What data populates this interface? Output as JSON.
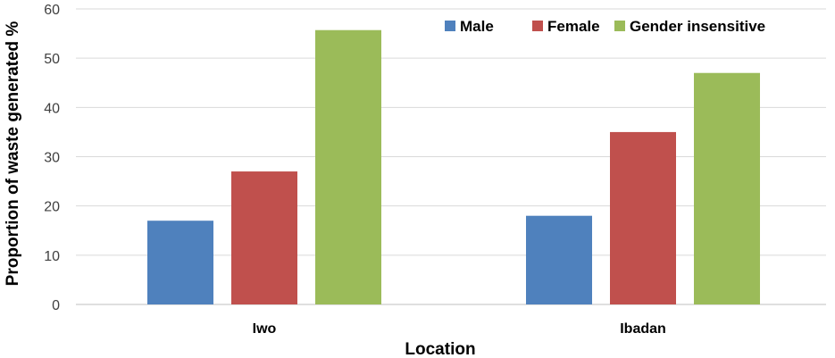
{
  "chart_data": {
    "type": "bar",
    "categories": [
      "Iwo",
      "Ibadan"
    ],
    "series": [
      {
        "name": "Male",
        "color": "#4f81bd",
        "values": [
          17,
          18
        ]
      },
      {
        "name": "Female",
        "color": "#c0504d",
        "values": [
          27,
          35
        ]
      },
      {
        "name": "Gender insensitive",
        "color": "#9bbb59",
        "values": [
          55.7,
          47
        ]
      }
    ],
    "xlabel": "Location",
    "ylabel": "Proportion of waste generated  %",
    "ylim": [
      0,
      60
    ],
    "yticks": [
      0,
      10,
      20,
      30,
      40,
      50,
      60
    ],
    "grid": true,
    "legend_position": "top-right"
  }
}
